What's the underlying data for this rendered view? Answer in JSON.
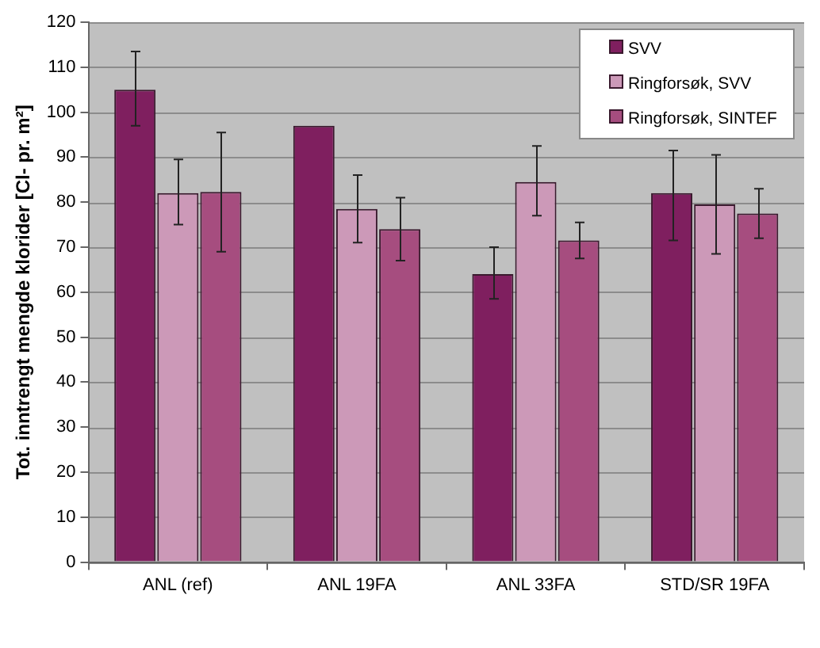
{
  "chart_data": {
    "type": "bar",
    "ylabel": "Tot. inntrengt mengde klorider [Cl- pr. m²]",
    "categories": [
      "ANL (ref)",
      "ANL 19FA",
      "ANL 33FA",
      "STD/SR 19FA"
    ],
    "series": [
      {
        "name": "SVV",
        "color": "#7f1f5f",
        "values": [
          105,
          97,
          64,
          82
        ],
        "errors": [
          [
            97,
            113.5
          ],
          null,
          [
            58.5,
            70
          ],
          [
            71.5,
            91.5
          ]
        ]
      },
      {
        "name": "Ringforsøk, SVV",
        "color": "#cc99b8",
        "values": [
          82,
          78.5,
          84.5,
          79.5
        ],
        "errors": [
          [
            75,
            89.5
          ],
          [
            71,
            86
          ],
          [
            77,
            92.5
          ],
          [
            68.5,
            90.5
          ]
        ]
      },
      {
        "name": "Ringforsøk, SINTEF",
        "color": "#a64d7f",
        "values": [
          82.3,
          74,
          71.5,
          77.5
        ],
        "errors": [
          [
            69,
            95.5
          ],
          [
            67,
            81
          ],
          [
            67.5,
            75.5
          ],
          [
            72,
            83
          ]
        ]
      }
    ],
    "ylim": [
      0,
      120
    ],
    "yticks": [
      0,
      10,
      20,
      30,
      40,
      50,
      60,
      70,
      80,
      90,
      100,
      110,
      120
    ],
    "grid": "y",
    "legend": "top right"
  }
}
